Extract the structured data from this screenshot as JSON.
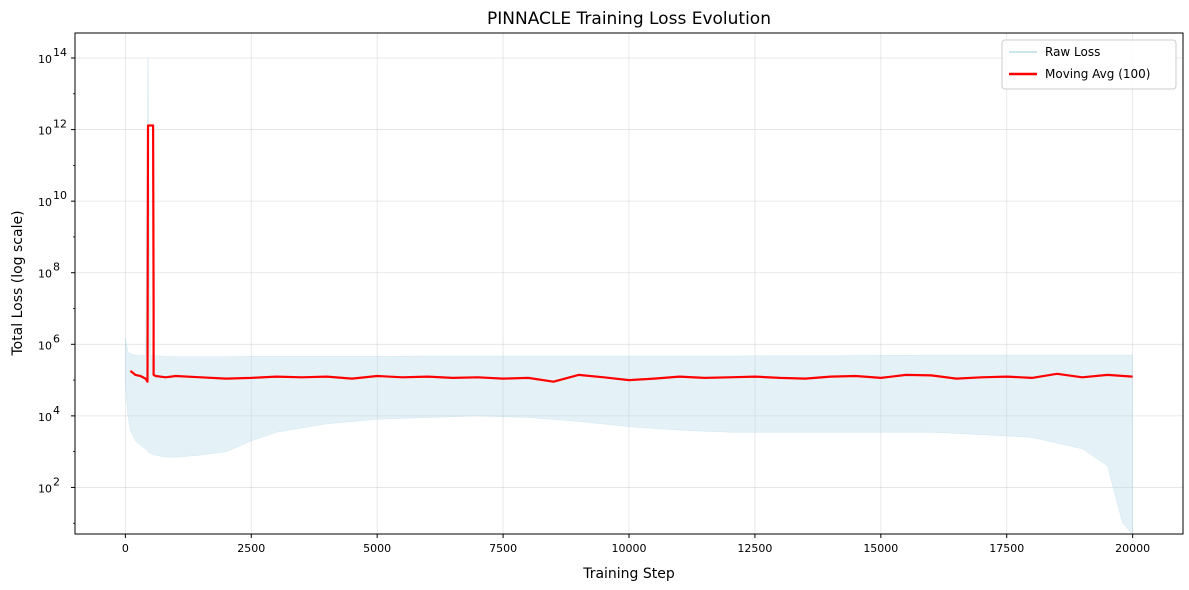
{
  "chart_data": {
    "type": "line",
    "title": "PINNACLE Training Loss Evolution",
    "xlabel": "Training Step",
    "ylabel": "Total Loss (log scale)",
    "xlim": [
      -1000,
      21000
    ],
    "ylim": [
      5,
      500000000000000
    ],
    "yscale": "log",
    "grid": true,
    "legend_position": "top-right",
    "x_ticks": [
      0,
      2500,
      5000,
      7500,
      10000,
      12500,
      15000,
      17500,
      20000
    ],
    "x_tick_labels": [
      "0",
      "2500",
      "5000",
      "7500",
      "10000",
      "12500",
      "15000",
      "17500",
      "20000"
    ],
    "y_ticks": [
      {
        "value": 100,
        "base": "10",
        "exp": "2"
      },
      {
        "value": 10000,
        "base": "10",
        "exp": "4"
      },
      {
        "value": 1000000,
        "base": "10",
        "exp": "6"
      },
      {
        "value": 100000000,
        "base": "10",
        "exp": "8"
      },
      {
        "value": 10000000000,
        "base": "10",
        "exp": "10"
      },
      {
        "value": 1000000000000,
        "base": "10",
        "exp": "12"
      },
      {
        "value": 100000000000000,
        "base": "10",
        "exp": "14"
      }
    ],
    "series": [
      {
        "name": "Raw Loss",
        "color": "#add8e6",
        "style": "band",
        "x": [
          0,
          50,
          100,
          200,
          300,
          400,
          450,
          500,
          600,
          800,
          1000,
          1500,
          2000,
          2500,
          3000,
          4000,
          5000,
          6000,
          7000,
          8000,
          9000,
          10000,
          11000,
          12000,
          13000,
          14000,
          15000,
          16000,
          17000,
          18000,
          19000,
          19500,
          19800,
          20000
        ],
        "upper": [
          1500000,
          600000,
          550000,
          500000,
          480000,
          500000,
          100000000000000,
          500000,
          480000,
          460000,
          450000,
          450000,
          450000,
          460000,
          460000,
          460000,
          460000,
          470000,
          470000,
          470000,
          470000,
          470000,
          470000,
          470000,
          480000,
          480000,
          490000,
          500000,
          500000,
          500000,
          500000,
          500000,
          500000,
          500000
        ],
        "lower": [
          80000,
          10000,
          4000,
          2000,
          1500,
          1200,
          1000,
          900,
          800,
          700,
          700,
          800,
          1000,
          2000,
          3500,
          6000,
          8000,
          9000,
          10000,
          9000,
          7000,
          5000,
          4000,
          3500,
          3500,
          3500,
          3500,
          3500,
          3000,
          2500,
          1200,
          400,
          10,
          5
        ]
      },
      {
        "name": "Moving Avg (100)",
        "color": "#ff0000",
        "style": "line",
        "x": [
          100,
          200,
          300,
          400,
          440,
          450,
          550,
          560,
          560,
          600,
          800,
          1000,
          1500,
          2000,
          2500,
          3000,
          3500,
          4000,
          4500,
          5000,
          5500,
          6000,
          6500,
          7000,
          7500,
          8000,
          8500,
          9000,
          9500,
          10000,
          10500,
          11000,
          11500,
          12000,
          12500,
          13000,
          13500,
          14000,
          14500,
          15000,
          15500,
          16000,
          16500,
          17000,
          17500,
          18000,
          18500,
          19000,
          19500,
          20000
        ],
        "values": [
          180000,
          140000,
          130000,
          110000,
          90000,
          1300000000000,
          1300000000000,
          12000000,
          140000,
          130000,
          120000,
          130000,
          120000,
          110000,
          115000,
          125000,
          120000,
          125000,
          110000,
          130000,
          120000,
          125000,
          115000,
          120000,
          110000,
          115000,
          90000,
          140000,
          120000,
          100000,
          110000,
          125000,
          115000,
          120000,
          125000,
          115000,
          110000,
          125000,
          130000,
          115000,
          140000,
          135000,
          110000,
          120000,
          125000,
          115000,
          150000,
          120000,
          140000,
          125000
        ]
      }
    ]
  }
}
